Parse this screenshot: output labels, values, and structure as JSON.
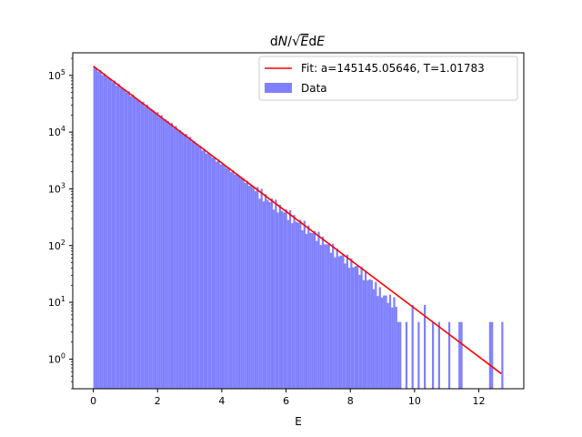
{
  "chart_data": {
    "type": "bar",
    "title_parts": {
      "dN": "d",
      "N": "N",
      "slash": "/",
      "E": "E",
      "dE": "d",
      "E2": "E"
    },
    "xlabel": "E",
    "ylabel": "",
    "yscale": "log",
    "xlim": [
      -0.64,
      13.4
    ],
    "ylim": [
      0.3,
      250000
    ],
    "x_ticks": [
      0,
      2,
      4,
      6,
      8,
      10,
      12
    ],
    "x_tick_labels": [
      "0",
      "2",
      "4",
      "6",
      "8",
      "10",
      "12"
    ],
    "y_ticks": [
      1,
      10,
      100,
      1000,
      10000,
      100000
    ],
    "y_tick_labels": [
      {
        "base": "10",
        "exp": "0"
      },
      {
        "base": "10",
        "exp": "1"
      },
      {
        "base": "10",
        "exp": "2"
      },
      {
        "base": "10",
        "exp": "3"
      },
      {
        "base": "10",
        "exp": "4"
      },
      {
        "base": "10",
        "exp": "5"
      }
    ],
    "legend_position": "top-right",
    "fit": {
      "name": "Fit: a=145145.05646, T=1.01783",
      "a": 145145.05646,
      "T": 1.01783,
      "x_range": [
        0,
        12.7
      ],
      "color": "#ff0000"
    },
    "histogram": {
      "name": "Data",
      "color": "#8080ff",
      "bin_width": 0.0635,
      "bins": [
        {
          "x": 0.0,
          "y": 140000
        },
        {
          "x": 0.5,
          "y": 86000
        },
        {
          "x": 1.0,
          "y": 53000
        },
        {
          "x": 1.5,
          "y": 33000
        },
        {
          "x": 2.0,
          "y": 20500
        },
        {
          "x": 2.5,
          "y": 12500
        },
        {
          "x": 3.0,
          "y": 7600
        },
        {
          "x": 3.5,
          "y": 4400
        },
        {
          "x": 4.0,
          "y": 2700
        },
        {
          "x": 4.5,
          "y": 1700
        },
        {
          "x": 5.0,
          "y": 1000
        },
        {
          "x": 5.5,
          "y": 600
        },
        {
          "x": 6.0,
          "y": 370
        },
        {
          "x": 6.5,
          "y": 230
        },
        {
          "x": 7.0,
          "y": 140
        },
        {
          "x": 7.5,
          "y": 80
        },
        {
          "x": 8.0,
          "y": 50
        },
        {
          "x": 8.5,
          "y": 28
        },
        {
          "x": 9.0,
          "y": 13
        },
        {
          "x": 9.5,
          "y": 9
        },
        {
          "x": 10.0,
          "y": 5
        },
        {
          "x": 10.5,
          "y": 4.5
        },
        {
          "x": 11.0,
          "y": 4.5
        },
        {
          "x": 11.4,
          "y": 4.5
        },
        {
          "x": 12.4,
          "y": 4.5
        },
        {
          "x": 12.7,
          "y": 4.5
        }
      ]
    }
  }
}
